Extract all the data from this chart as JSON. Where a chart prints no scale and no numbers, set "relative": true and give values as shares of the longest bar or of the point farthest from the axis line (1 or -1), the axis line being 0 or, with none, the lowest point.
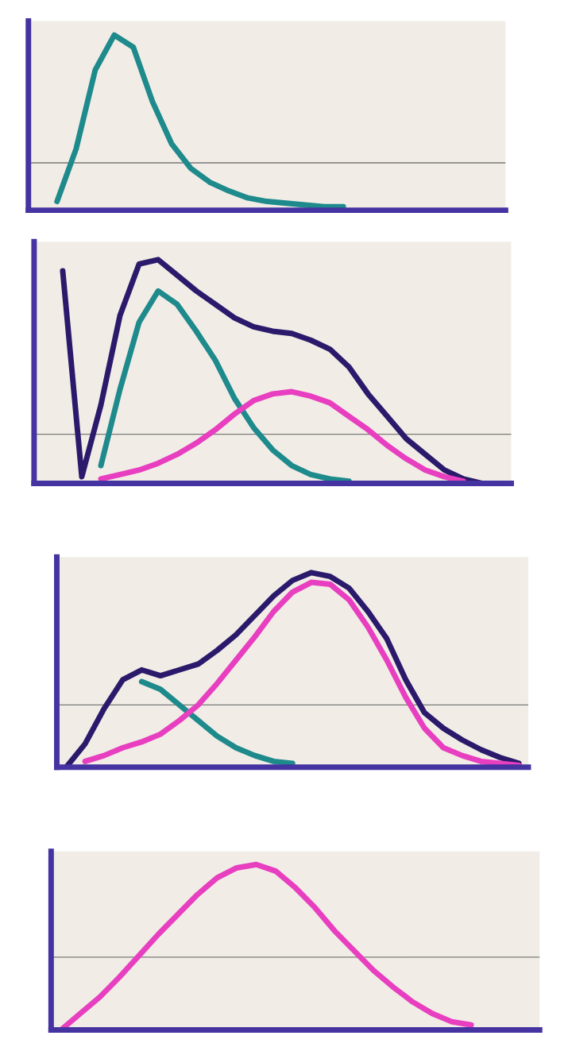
{
  "chart_data": [
    {
      "type": "line",
      "relative": true,
      "categories": [
        null,
        null,
        null,
        null,
        null,
        null,
        null,
        null,
        null,
        null,
        null,
        null,
        null,
        null,
        null,
        null,
        null,
        null,
        null,
        null,
        null,
        null,
        null,
        null,
        null
      ],
      "series": [
        {
          "color": "#1e8a8c",
          "values": [
            null,
            0.05,
            0.35,
            0.8,
            1.0,
            0.93,
            0.62,
            0.38,
            0.24,
            0.16,
            0.11,
            0.07,
            0.05,
            0.04,
            0.03,
            0.02,
            0.02,
            null,
            null,
            null,
            null,
            null,
            null,
            null,
            null
          ]
        }
      ],
      "ref_lines": [
        {
          "axis": "y",
          "value": 0.27,
          "color": "#7a7a7a"
        }
      ],
      "grid": false,
      "legend": false
    },
    {
      "type": "line",
      "relative": true,
      "categories": [
        null,
        null,
        null,
        null,
        null,
        null,
        null,
        null,
        null,
        null,
        null,
        null,
        null,
        null,
        null,
        null,
        null,
        null,
        null,
        null,
        null,
        null,
        null,
        null,
        null
      ],
      "series": [
        {
          "color": "#2b1a6b",
          "values": [
            null,
            0.95,
            0.03,
            0.35,
            0.75,
            0.98,
            1.0,
            0.93,
            0.86,
            0.8,
            0.74,
            0.7,
            0.68,
            0.67,
            0.64,
            0.6,
            0.52,
            0.4,
            0.3,
            0.2,
            0.13,
            0.06,
            0.02,
            0.0,
            null
          ]
        },
        {
          "color": "#1e8a8c",
          "values": [
            null,
            null,
            null,
            0.08,
            0.42,
            0.72,
            0.86,
            0.8,
            0.68,
            0.55,
            0.38,
            0.25,
            0.15,
            0.08,
            0.04,
            0.02,
            0.01,
            null,
            null,
            null,
            null,
            null,
            null,
            null,
            null
          ]
        },
        {
          "color": "#e83ec0",
          "values": [
            null,
            null,
            null,
            0.02,
            0.04,
            0.06,
            0.09,
            0.13,
            0.18,
            0.24,
            0.31,
            0.37,
            0.4,
            0.41,
            0.39,
            0.36,
            0.3,
            0.24,
            0.17,
            0.11,
            0.06,
            0.03,
            0.01,
            null,
            null
          ]
        }
      ],
      "ref_lines": [
        {
          "axis": "y",
          "value": 0.22,
          "color": "#7a7a7a"
        }
      ],
      "grid": false,
      "legend": false
    },
    {
      "type": "line",
      "relative": true,
      "categories": [
        null,
        null,
        null,
        null,
        null,
        null,
        null,
        null,
        null,
        null,
        null,
        null,
        null,
        null,
        null,
        null,
        null,
        null,
        null,
        null,
        null,
        null,
        null,
        null,
        null
      ],
      "series": [
        {
          "color": "#2b1a6b",
          "values": [
            0.0,
            0.12,
            0.3,
            0.45,
            0.5,
            0.47,
            0.5,
            0.53,
            0.6,
            0.68,
            0.78,
            0.88,
            0.96,
            1.0,
            0.98,
            0.92,
            0.8,
            0.66,
            0.45,
            0.28,
            0.2,
            0.14,
            0.09,
            0.05,
            0.02
          ]
        },
        {
          "color": "#1e8a8c",
          "values": [
            null,
            null,
            null,
            null,
            0.44,
            0.4,
            0.32,
            0.24,
            0.16,
            0.1,
            0.06,
            0.03,
            0.02,
            null,
            null,
            null,
            null,
            null,
            null,
            null,
            null,
            null,
            null,
            null,
            null
          ]
        },
        {
          "color": "#e83ec0",
          "values": [
            null,
            0.03,
            0.06,
            0.1,
            0.13,
            0.17,
            0.24,
            0.32,
            0.43,
            0.55,
            0.67,
            0.8,
            0.9,
            0.95,
            0.94,
            0.86,
            0.72,
            0.55,
            0.36,
            0.2,
            0.1,
            0.06,
            0.03,
            0.02,
            0.01
          ]
        }
      ],
      "ref_lines": [
        {
          "axis": "y",
          "value": 0.32,
          "color": "#7a7a7a"
        }
      ],
      "grid": false,
      "legend": false
    },
    {
      "type": "line",
      "relative": true,
      "categories": [
        null,
        null,
        null,
        null,
        null,
        null,
        null,
        null,
        null,
        null,
        null,
        null,
        null,
        null,
        null,
        null,
        null,
        null,
        null,
        null,
        null,
        null,
        null,
        null,
        null
      ],
      "series": [
        {
          "color": "#e83ec0",
          "values": [
            0.0,
            0.1,
            0.2,
            0.32,
            0.45,
            0.58,
            0.7,
            0.82,
            0.92,
            0.98,
            1.0,
            0.96,
            0.86,
            0.74,
            0.6,
            0.48,
            0.36,
            0.26,
            0.17,
            0.1,
            0.05,
            0.03,
            null,
            null,
            null
          ]
        }
      ],
      "ref_lines": [
        {
          "axis": "y",
          "value": 0.44,
          "color": "#7a7a7a"
        }
      ],
      "grid": false,
      "legend": false
    }
  ]
}
